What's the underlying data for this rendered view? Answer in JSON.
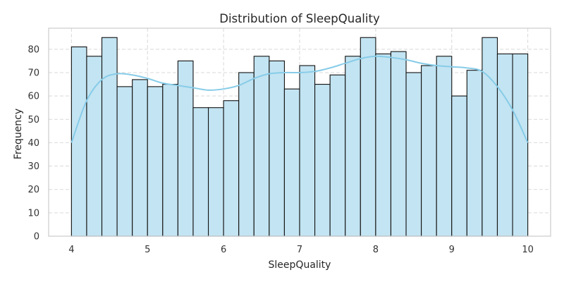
{
  "chart_data": {
    "type": "bar",
    "title": "Distribution of SleepQuality",
    "xlabel": "SleepQuality",
    "ylabel": "Frequency",
    "bin_edges": [
      4.0,
      4.2,
      4.4,
      4.6,
      4.8,
      5.0,
      5.2,
      5.4,
      5.6,
      5.8,
      6.0,
      6.2,
      6.4,
      6.6,
      6.8,
      7.0,
      7.2,
      7.4,
      7.6,
      7.8,
      8.0,
      8.2,
      8.4,
      8.6,
      8.8,
      9.0,
      9.2,
      9.4,
      9.6,
      9.8,
      10.0
    ],
    "values": [
      81,
      77,
      85,
      64,
      67,
      64,
      65,
      75,
      55,
      55,
      58,
      70,
      77,
      75,
      63,
      73,
      65,
      69,
      77,
      85,
      78,
      79,
      70,
      73,
      77,
      60,
      71,
      85,
      78,
      78
    ],
    "kde": {
      "x": [
        4.0,
        4.2,
        4.4,
        4.6,
        4.8,
        5.0,
        5.2,
        5.4,
        5.6,
        5.8,
        6.0,
        6.2,
        6.4,
        6.6,
        6.8,
        7.0,
        7.2,
        7.4,
        7.6,
        7.8,
        8.0,
        8.2,
        8.4,
        8.6,
        8.8,
        9.0,
        9.2,
        9.4,
        9.6,
        9.8,
        10.0
      ],
      "y": [
        40,
        58,
        67,
        69.5,
        69,
        67.5,
        65.5,
        64.5,
        63.5,
        62.5,
        63,
        64.5,
        67.5,
        69.5,
        70,
        70,
        70.5,
        72,
        74,
        76,
        77,
        76.5,
        75.5,
        74,
        73,
        72.5,
        72,
        70.5,
        64,
        54,
        40
      ]
    },
    "x_ticks": [
      4,
      5,
      6,
      7,
      8,
      9,
      10
    ],
    "y_ticks": [
      0,
      10,
      20,
      30,
      40,
      50,
      60,
      70,
      80
    ],
    "xlim": [
      3.7,
      10.3
    ],
    "ylim": [
      0,
      89
    ],
    "grid": true,
    "colors": {
      "bar_fill": "#c3e4f2",
      "bar_edge": "#111111",
      "kde_line": "#87cce8",
      "grid": "#d9d9d9"
    }
  }
}
